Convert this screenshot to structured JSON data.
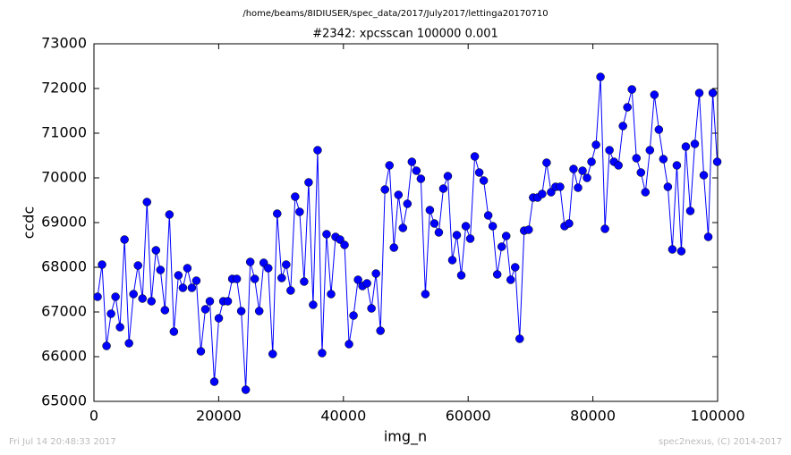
{
  "header": {
    "path": "/home/beams/8IDIUSER/spec_data/2017/July2017/lettinga20170710"
  },
  "footer": {
    "timestamp": "Fri Jul 14 20:48:33 2017",
    "credit": "spec2nexus, (C) 2014-2017"
  },
  "chart_data": {
    "type": "line",
    "title": "#2342: xpcsscan 100000 0.001",
    "x_label": "img_n",
    "y_label": "ccdc",
    "xlim": [
      0,
      100000
    ],
    "xticks": [
      0,
      20000,
      40000,
      60000,
      80000,
      100000
    ],
    "ylim": [
      65000,
      73000
    ],
    "yticks": [
      65000,
      66000,
      67000,
      68000,
      69000,
      70000,
      71000,
      72000,
      73000
    ],
    "grid": false,
    "marker": "circle",
    "x": [
      580,
      1300,
      2020,
      2740,
      3460,
      4180,
      4900,
      5620,
      6340,
      7060,
      7780,
      8500,
      9220,
      9940,
      10660,
      11380,
      12100,
      12820,
      13540,
      14260,
      14980,
      15700,
      16420,
      17140,
      17860,
      18580,
      19300,
      20020,
      20740,
      21460,
      22180,
      22900,
      23620,
      24340,
      25060,
      25780,
      26500,
      27220,
      27940,
      28660,
      29380,
      30100,
      30820,
      31540,
      32260,
      32980,
      33700,
      34420,
      35140,
      35860,
      36580,
      37300,
      38020,
      38740,
      39460,
      40180,
      40900,
      41620,
      42340,
      43060,
      43780,
      44500,
      45220,
      45940,
      46660,
      47380,
      48100,
      48820,
      49540,
      50260,
      50980,
      51700,
      52420,
      53140,
      53860,
      54580,
      55300,
      56020,
      56740,
      57460,
      58180,
      58900,
      59620,
      60340,
      61060,
      61780,
      62500,
      63220,
      63940,
      64660,
      65380,
      66100,
      66820,
      67540,
      68260,
      68980,
      69700,
      70420,
      71140,
      71860,
      72580,
      73300,
      74020,
      74740,
      75460,
      76180,
      76900,
      77620,
      78340,
      79060,
      79780,
      80500,
      81220,
      81940,
      82660,
      83380,
      84100,
      84820,
      85540,
      86260,
      86980,
      87700,
      88420,
      89140,
      89860,
      90580,
      91300,
      92020,
      92740,
      93460,
      94180,
      94900,
      95620,
      96340,
      97060,
      97780,
      98500,
      99220,
      99940
    ],
    "series": [
      {
        "name": "ccdc",
        "color": "#0000ff",
        "values": [
          67340,
          68060,
          66240,
          66960,
          67340,
          66660,
          68620,
          66300,
          67400,
          68040,
          67300,
          69460,
          67240,
          68380,
          67940,
          67040,
          69180,
          66560,
          67820,
          67540,
          67980,
          67540,
          67700,
          66120,
          67060,
          67240,
          65440,
          66860,
          67240,
          67240,
          67740,
          67740,
          67020,
          65260,
          68120,
          67740,
          67020,
          68100,
          67980,
          66060,
          69200,
          67760,
          68060,
          67480,
          69580,
          69240,
          67680,
          69900,
          67160,
          70620,
          66080,
          68740,
          67400,
          68680,
          68620,
          68500,
          66280,
          66920,
          67720,
          67580,
          67640,
          67080,
          67860,
          66580,
          69740,
          70280,
          68440,
          69620,
          68880,
          69420,
          70360,
          70160,
          69980,
          67400,
          69280,
          68980,
          68780,
          69760,
          70040,
          68160,
          68720,
          67820,
          68920,
          68640,
          70480,
          70120,
          69940,
          69160,
          68920,
          67840,
          68460,
          68700,
          67720,
          68000,
          66400,
          68820,
          68840,
          69560,
          69560,
          69640,
          70340,
          69680,
          69800,
          69800,
          68920,
          68980,
          70200,
          69780,
          70160,
          70000,
          70360,
          70740,
          72260,
          68860,
          70620,
          70360,
          70280,
          71160,
          71580,
          71980,
          70440,
          70120,
          69680,
          70620,
          71860,
          71080,
          70420,
          69800,
          68400,
          70280,
          68360,
          70700,
          69260,
          70760,
          71900,
          70060,
          68680,
          71900,
          70360
        ]
      }
    ]
  }
}
